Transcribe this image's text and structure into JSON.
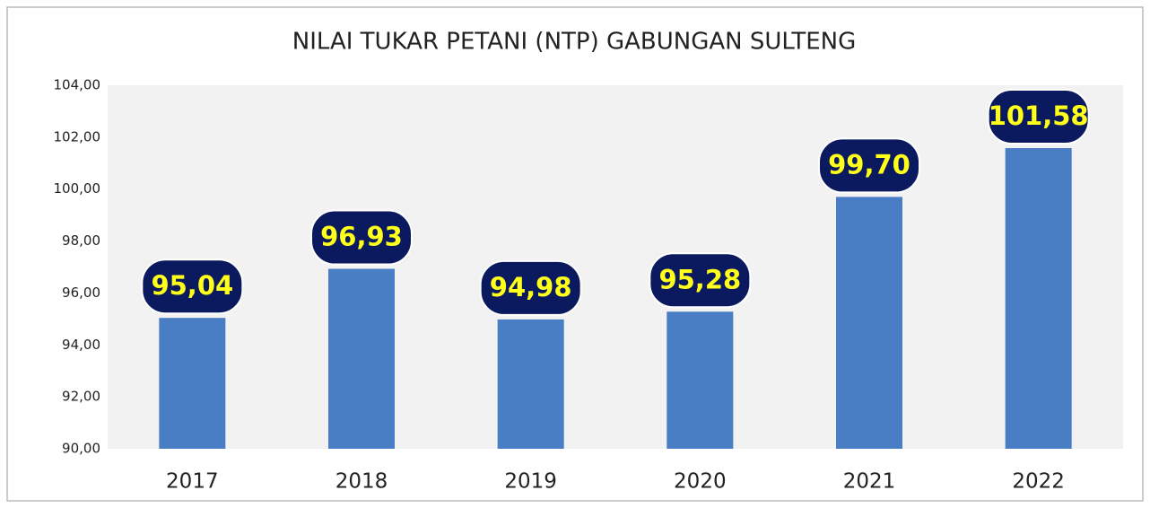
{
  "chart_data": {
    "type": "bar",
    "title": "NILAI TUKAR PETANI (NTP) GABUNGAN SULTENG",
    "categories": [
      "2017",
      "2018",
      "2019",
      "2020",
      "2021",
      "2022"
    ],
    "values": [
      95.04,
      96.93,
      94.98,
      95.28,
      99.7,
      101.58
    ],
    "value_labels": [
      "95,04",
      "96,93",
      "94,98",
      "95,28",
      "99,70",
      "101,58"
    ],
    "color": "#4a7ec4",
    "ylim": [
      90,
      104
    ],
    "yticks": [
      {
        "value": 90,
        "label": "90,00"
      },
      {
        "value": 92,
        "label": "92,00"
      },
      {
        "value": 94,
        "label": "94,00"
      },
      {
        "value": 96,
        "label": "96,00"
      },
      {
        "value": 98,
        "label": "98,00"
      },
      {
        "value": 100,
        "label": "100,00"
      },
      {
        "value": 102,
        "label": "102,00"
      },
      {
        "value": 104,
        "label": "104,00"
      }
    ]
  }
}
